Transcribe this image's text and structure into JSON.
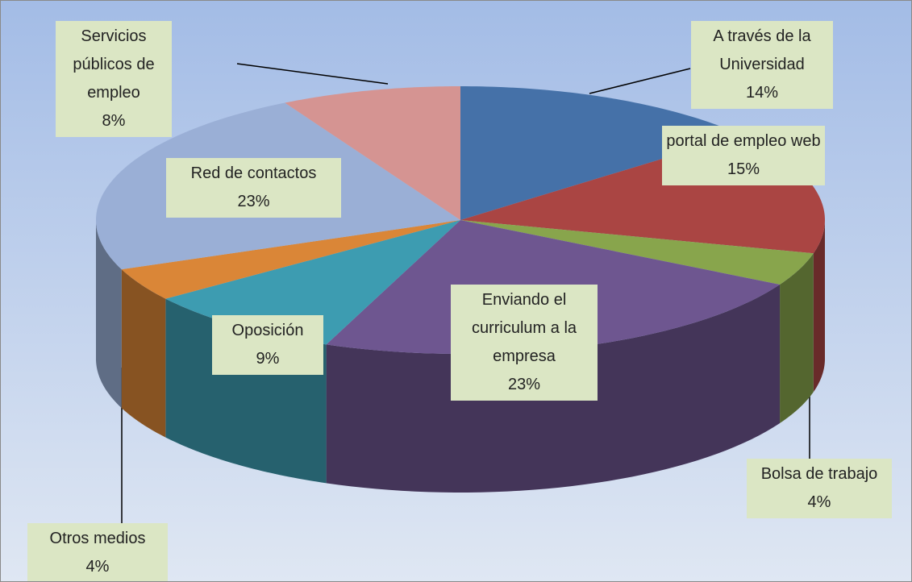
{
  "chart_data": {
    "type": "pie3d",
    "categories": [
      "A través de la Universidad",
      "portal de empleo web",
      "Bolsa de trabajo",
      "Enviando el curriculum  a la empresa",
      "Oposición",
      "Otros medios",
      "Red de contactos",
      "Servicios públicos de empleo"
    ],
    "values": [
      14,
      15,
      4,
      23,
      9,
      4,
      23,
      8
    ],
    "value_labels": [
      "14%",
      "15%",
      "4%",
      "23%",
      "9%",
      "4%",
      "23%",
      "8%"
    ],
    "colors": [
      "#4571a8",
      "#aa4543",
      "#88a54c",
      "#6e5690",
      "#3d9cb1",
      "#da8637",
      "#9aafd6",
      "#d59492"
    ]
  }
}
